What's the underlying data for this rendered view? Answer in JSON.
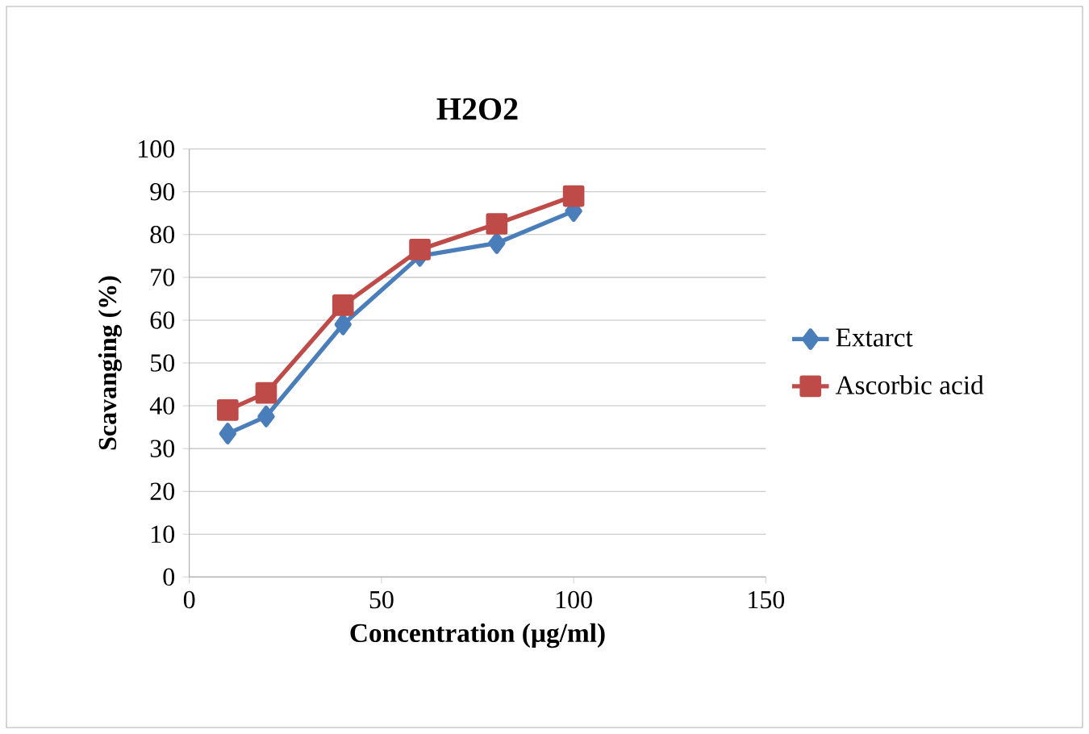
{
  "chart_data": {
    "type": "line",
    "title": "H2O2",
    "xlabel": "Concentration (µg/ml)",
    "ylabel": "Scavanging (%)",
    "x": [
      10,
      20,
      40,
      60,
      80,
      100
    ],
    "series": [
      {
        "name": "Extarct",
        "color": "#4a7ebb",
        "values": [
          33.5,
          37.5,
          59,
          75,
          78,
          85.5
        ],
        "marker": "diamond"
      },
      {
        "name": "Ascorbic acid",
        "color": "#be4b48",
        "values": [
          39,
          43,
          63.5,
          76.5,
          82.5,
          89
        ],
        "marker": "square"
      }
    ],
    "xlim": [
      0,
      150
    ],
    "ylim": [
      0,
      100
    ],
    "xticks": [
      0,
      50,
      100,
      150
    ],
    "yticks": [
      0,
      10,
      20,
      30,
      40,
      50,
      60,
      70,
      80,
      90,
      100
    ],
    "grid": "y",
    "legend": "right",
    "line_style": "solid"
  }
}
